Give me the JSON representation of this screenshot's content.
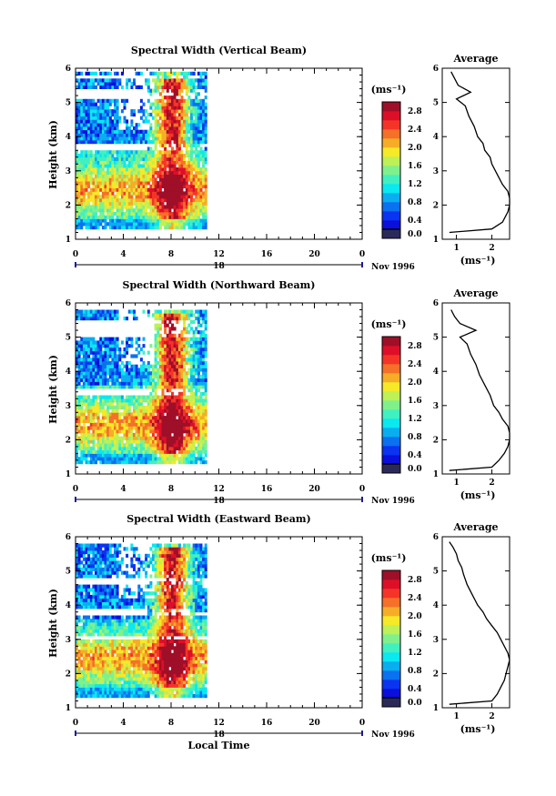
{
  "chart_data": [
    {
      "type": "heatmap",
      "title": "Spectral Width (Vertical Beam)",
      "ylabel": "Height (km)",
      "xlabel": "",
      "x_ticks": [
        "0",
        "4",
        "8",
        "12",
        "16",
        "20",
        "0"
      ],
      "y_ticks": [
        "1",
        "2",
        "3",
        "4",
        "5",
        "6"
      ],
      "xlim": [
        0,
        24
      ],
      "ylim": [
        1,
        6
      ],
      "data_time_range": [
        0,
        11
      ],
      "data_height_range": [
        1.3,
        5.9
      ],
      "gaps_height": [
        [
          5.05,
          5.35
        ],
        [
          5.6,
          5.75
        ],
        [
          3.6,
          3.8
        ]
      ],
      "core_hours": [
        6.5,
        9.5
      ],
      "day_label": "18",
      "date_label": "Nov 1996",
      "colorbar": {
        "unit_label": "(ms⁻¹)",
        "ticks": [
          "2.8",
          "2.4",
          "2.0",
          "1.6",
          "1.2",
          "0.8",
          "0.4",
          "0.0"
        ],
        "range": [
          0,
          3.0
        ]
      },
      "average_profile": {
        "title": "Average",
        "xlabel": "(ms⁻¹)",
        "x_ticks": [
          "1",
          "2"
        ],
        "y_ticks": [
          "1",
          "2",
          "3",
          "4",
          "5",
          "6"
        ],
        "xlim": [
          0.6,
          2.5
        ],
        "height": [
          1.2,
          1.3,
          1.5,
          1.8,
          2.0,
          2.2,
          2.4,
          2.6,
          2.8,
          3.0,
          3.2,
          3.4,
          3.6,
          3.8,
          4.0,
          4.3,
          4.6,
          4.9,
          5.1,
          5.3,
          5.5,
          5.7,
          5.9
        ],
        "width": [
          0.8,
          2.0,
          2.3,
          2.45,
          2.5,
          2.5,
          2.45,
          2.3,
          2.2,
          2.1,
          2.0,
          1.95,
          1.8,
          1.75,
          1.6,
          1.5,
          1.35,
          1.25,
          1.0,
          1.4,
          1.05,
          0.95,
          0.85
        ]
      }
    },
    {
      "type": "heatmap",
      "title": "Spectral Width (Northward Beam)",
      "ylabel": "Height (km)",
      "xlabel": "",
      "x_ticks": [
        "0",
        "4",
        "8",
        "12",
        "16",
        "20",
        "0"
      ],
      "y_ticks": [
        "1",
        "2",
        "3",
        "4",
        "5",
        "6"
      ],
      "xlim": [
        0,
        24
      ],
      "ylim": [
        1,
        6
      ],
      "data_time_range": [
        0,
        11
      ],
      "data_height_range": [
        1.3,
        5.8
      ],
      "gaps_height": [
        [
          4.95,
          5.4
        ],
        [
          3.3,
          3.5
        ]
      ],
      "core_hours": [
        6.5,
        9.5
      ],
      "day_label": "18",
      "date_label": "Nov 1996",
      "colorbar": {
        "unit_label": "(ms⁻¹)",
        "ticks": [
          "2.8",
          "2.4",
          "2.0",
          "1.6",
          "1.2",
          "0.8",
          "0.4",
          "0.0"
        ],
        "range": [
          0,
          3.0
        ]
      },
      "average_profile": {
        "title": "Average",
        "xlabel": "(ms⁻¹)",
        "x_ticks": [
          "1",
          "2"
        ],
        "y_ticks": [
          "1",
          "2",
          "3",
          "4",
          "5",
          "6"
        ],
        "xlim": [
          0.6,
          2.5
        ],
        "height": [
          1.1,
          1.2,
          1.4,
          1.6,
          1.8,
          2.0,
          2.2,
          2.4,
          2.6,
          2.8,
          3.0,
          3.3,
          3.6,
          3.9,
          4.2,
          4.5,
          4.8,
          5.0,
          5.2,
          5.4,
          5.6,
          5.8
        ],
        "width": [
          0.8,
          2.0,
          2.2,
          2.35,
          2.45,
          2.5,
          2.5,
          2.45,
          2.3,
          2.2,
          2.05,
          1.95,
          1.8,
          1.65,
          1.55,
          1.4,
          1.3,
          1.1,
          1.55,
          1.1,
          0.95,
          0.85
        ]
      }
    },
    {
      "type": "heatmap",
      "title": "Spectral Width (Eastward Beam)",
      "ylabel": "Height (km)",
      "xlabel": "Local Time",
      "x_ticks": [
        "0",
        "4",
        "8",
        "12",
        "16",
        "20",
        "0"
      ],
      "y_ticks": [
        "1",
        "2",
        "3",
        "4",
        "5",
        "6"
      ],
      "xlim": [
        0,
        24
      ],
      "ylim": [
        1,
        6
      ],
      "data_time_range": [
        0,
        11
      ],
      "data_height_range": [
        1.3,
        5.8
      ],
      "gaps_height": [
        [
          4.6,
          4.75
        ],
        [
          3.7,
          3.85
        ],
        [
          2.95,
          3.1
        ]
      ],
      "core_hours": [
        6.5,
        9.5
      ],
      "day_label": "18",
      "date_label": "Nov 1996",
      "colorbar": {
        "unit_label": "(ms⁻¹)",
        "ticks": [
          "2.8",
          "2.4",
          "2.0",
          "1.6",
          "1.2",
          "0.8",
          "0.4",
          "0.0"
        ],
        "range": [
          0,
          3.0
        ]
      },
      "average_profile": {
        "title": "Average",
        "xlabel": "(ms⁻¹)",
        "x_ticks": [
          "1",
          "2"
        ],
        "y_ticks": [
          "1",
          "2",
          "3",
          "4",
          "5",
          "6"
        ],
        "xlim": [
          0.6,
          2.5
        ],
        "height": [
          1.1,
          1.2,
          1.4,
          1.6,
          1.8,
          2.0,
          2.2,
          2.4,
          2.6,
          2.8,
          3.0,
          3.2,
          3.4,
          3.6,
          3.8,
          4.0,
          4.3,
          4.6,
          4.9,
          5.1,
          5.3,
          5.5,
          5.7,
          5.85
        ],
        "width": [
          0.8,
          2.0,
          2.15,
          2.25,
          2.35,
          2.4,
          2.45,
          2.5,
          2.45,
          2.35,
          2.25,
          2.15,
          2.0,
          1.85,
          1.75,
          1.6,
          1.45,
          1.3,
          1.2,
          1.15,
          1.05,
          1.0,
          0.9,
          0.8
        ]
      }
    }
  ]
}
